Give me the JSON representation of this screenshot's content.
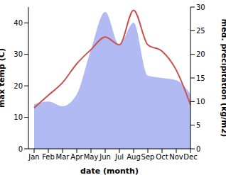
{
  "chart_data": {
    "type": "line",
    "categories": [
      "Jan",
      "Feb",
      "Mar",
      "Apr",
      "May",
      "Jun",
      "Jul",
      "Aug",
      "Sep",
      "Oct",
      "Nov",
      "Dec"
    ],
    "x_label": "date (month)",
    "y_label": "max temp (C)",
    "y2_label": "med. precipitation (kg/m2)",
    "ylim": [
      0,
      45
    ],
    "yticks": [
      0,
      10,
      20,
      30,
      40
    ],
    "y2lim": [
      0,
      30
    ],
    "y2ticks": [
      0,
      5,
      10,
      15,
      20,
      25,
      30
    ],
    "grid": false,
    "series": [
      {
        "type": "area",
        "axis": "y2",
        "color": "#b1baf2",
        "values": [
          9.4,
          10,
          9,
          11.5,
          21,
          29,
          22,
          26.7,
          15.5,
          15,
          14.5,
          11.6
        ]
      },
      {
        "type": "line",
        "axis": "y",
        "color": "#c8504f",
        "values": [
          13,
          17,
          21,
          27,
          31.5,
          35.5,
          33,
          44,
          33,
          31,
          25,
          14
        ]
      }
    ]
  }
}
